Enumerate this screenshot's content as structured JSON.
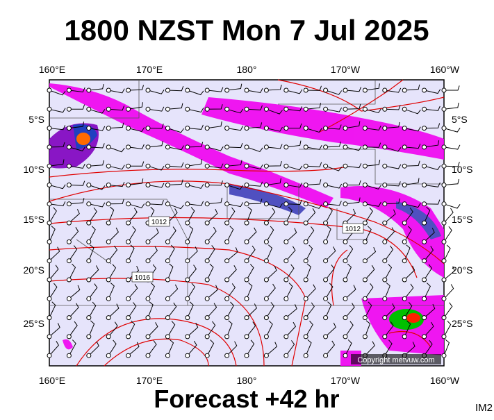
{
  "header": {
    "title": "1800 NZST Mon 7 Jul 2025"
  },
  "map": {
    "top_labels": [
      "160°E",
      "170°E",
      "180°",
      "170°W",
      "160°W"
    ],
    "bottom_labels": [
      "160°E",
      "170°E",
      "180°",
      "170°W",
      "160°W"
    ],
    "left_labels": [
      "5°S",
      "10°S",
      "15°S",
      "20°S",
      "25°S"
    ],
    "right_labels": [
      "5°S",
      "10°S",
      "15°S",
      "20°S",
      "25°S"
    ],
    "isobar_labels": [
      "1012",
      "1012",
      "1016"
    ],
    "copyright": "Copyright metvuw.com"
  },
  "footer": {
    "forecast": "Forecast +42 hr",
    "code": "IM2"
  }
}
